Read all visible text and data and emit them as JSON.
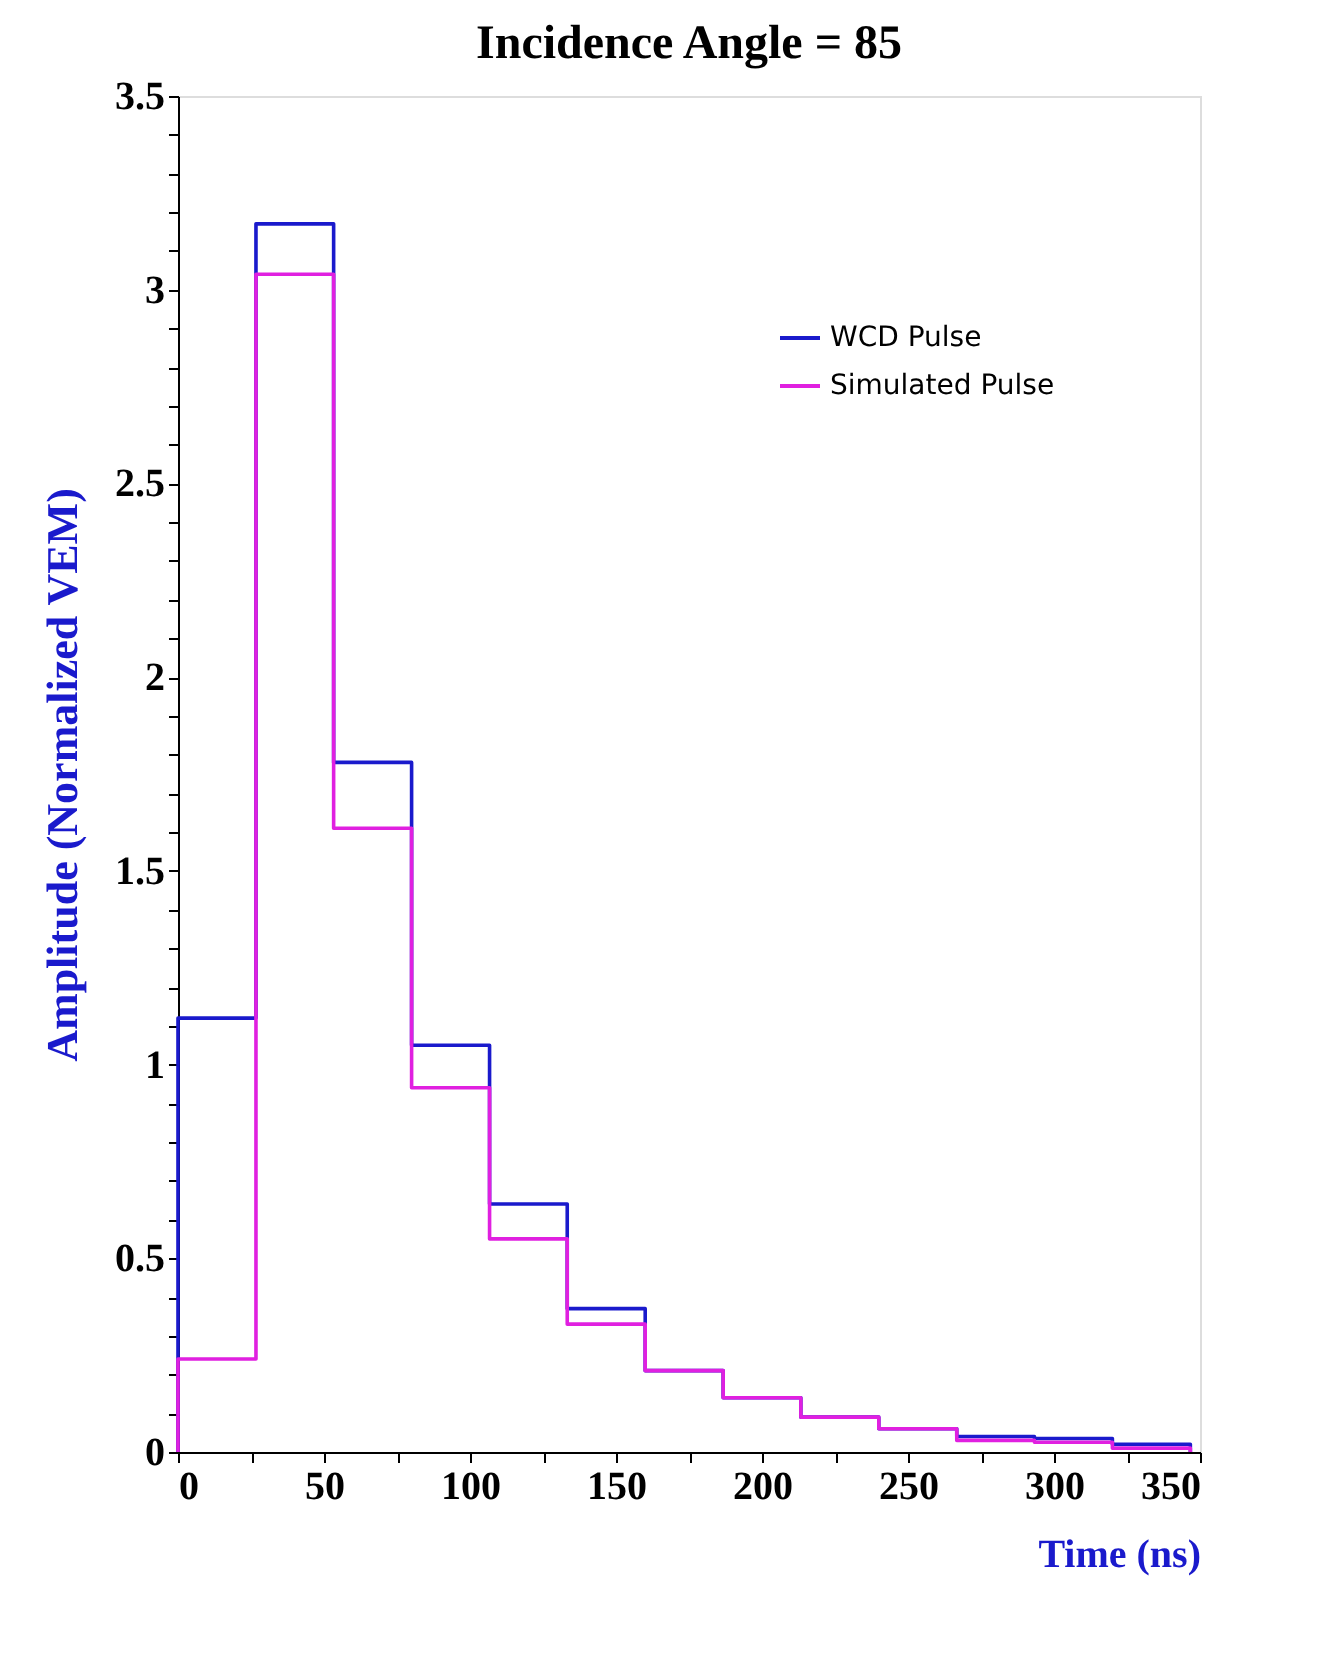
{
  "chart_data": {
    "type": "histogram",
    "title": "Incidence Angle = 85",
    "xlabel": "Time (ns)",
    "ylabel": "Amplitude (Normalized VEM)",
    "bins": [
      0,
      26.7,
      53.3,
      80,
      106.7,
      133.3,
      160,
      186.7,
      213.3,
      240,
      266.7,
      293.3,
      320,
      346.7
    ],
    "series": [
      {
        "name": "WCD Pulse",
        "color": "#1a1acc",
        "values": [
          1.12,
          3.17,
          1.78,
          1.05,
          0.64,
          0.37,
          0.21,
          0.14,
          0.09,
          0.06,
          0.04,
          0.035,
          0.02
        ]
      },
      {
        "name": "Simulated Pulse",
        "color": "#e020e0",
        "values": [
          0.24,
          3.04,
          1.61,
          0.94,
          0.55,
          0.33,
          0.21,
          0.14,
          0.09,
          0.06,
          0.03,
          0.025,
          0.01
        ]
      }
    ],
    "xlim": [
      0,
      350
    ],
    "ylim": [
      0,
      3.5
    ],
    "xticks": [
      0,
      {
        "value": 25,
        "label": null
      },
      50,
      {
        "value": 75,
        "label": null
      },
      100,
      {
        "value": 125,
        "label": null
      },
      150,
      {
        "value": 175,
        "label": null
      },
      200,
      {
        "value": 225,
        "label": null
      },
      250,
      {
        "value": 275,
        "label": null
      },
      300,
      {
        "value": 325,
        "label": null
      },
      350
    ],
    "yticks": [
      0,
      {
        "value": 0.1,
        "label": null
      },
      {
        "value": 0.2,
        "label": null
      },
      {
        "value": 0.3,
        "label": null
      },
      {
        "value": 0.4,
        "label": null
      },
      0.5,
      {
        "value": 0.6,
        "label": null
      },
      {
        "value": 0.7,
        "label": null
      },
      {
        "value": 0.8,
        "label": null
      },
      {
        "value": 0.9,
        "label": null
      },
      1,
      {
        "value": 1.1,
        "label": null
      },
      {
        "value": 1.2,
        "label": null
      },
      {
        "value": 1.3,
        "label": null
      },
      {
        "value": 1.4,
        "label": null
      },
      1.5,
      {
        "value": 1.6,
        "label": null
      },
      {
        "value": 1.7,
        "label": null
      },
      {
        "value": 1.8,
        "label": null
      },
      {
        "value": 1.9,
        "label": null
      },
      2,
      {
        "value": 2.1,
        "label": null
      },
      {
        "value": 2.2,
        "label": null
      },
      {
        "value": 2.3,
        "label": null
      },
      {
        "value": 2.4,
        "label": null
      },
      2.5,
      {
        "value": 2.6,
        "label": null
      },
      {
        "value": 2.7,
        "label": null
      },
      {
        "value": 2.8,
        "label": null
      },
      {
        "value": 2.9,
        "label": null
      },
      3,
      {
        "value": 3.1,
        "label": null
      },
      {
        "value": 3.2,
        "label": null
      },
      {
        "value": 3.3,
        "label": null
      },
      {
        "value": 3.4,
        "label": null
      },
      3.5
    ],
    "grid": false,
    "legend": "top right",
    "line_style": "solid",
    "marker": "none"
  }
}
